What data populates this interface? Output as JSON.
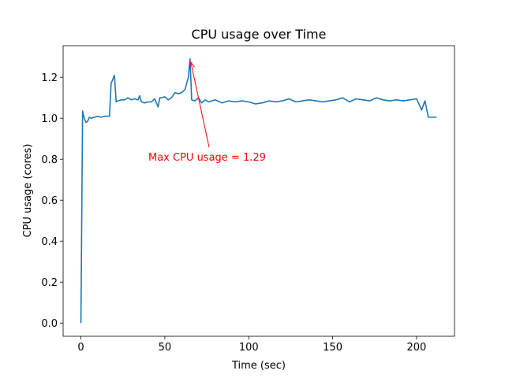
{
  "chart_data": {
    "type": "line",
    "title": "CPU usage over Time",
    "x_label": "Time (sec)",
    "y_label": "CPU usage (cores)",
    "x": [
      0,
      1,
      2,
      3,
      4,
      5,
      6,
      8,
      10,
      12,
      14,
      16,
      17,
      18,
      19,
      20,
      21,
      22,
      24,
      26,
      28,
      30,
      32,
      34,
      35,
      36,
      38,
      40,
      42,
      44,
      46,
      47,
      48,
      50,
      52,
      54,
      56,
      58,
      60,
      62,
      64,
      65,
      66,
      68,
      70,
      72,
      74,
      76,
      80,
      84,
      88,
      92,
      96,
      100,
      104,
      108,
      112,
      116,
      120,
      124,
      128,
      132,
      136,
      140,
      144,
      148,
      152,
      156,
      160,
      164,
      168,
      172,
      176,
      180,
      184,
      188,
      192,
      196,
      200,
      202,
      203,
      205,
      207,
      208,
      210,
      212
    ],
    "series": [
      {
        "name": "CPU usage",
        "color": "#1f77b4",
        "values": [
          0.0,
          1.035,
          1.0,
          0.98,
          0.985,
          1.005,
          1.0,
          1.005,
          1.01,
          1.005,
          1.01,
          1.01,
          1.01,
          1.17,
          1.19,
          1.21,
          1.08,
          1.085,
          1.09,
          1.09,
          1.1,
          1.09,
          1.095,
          1.09,
          1.11,
          1.08,
          1.075,
          1.08,
          1.08,
          1.095,
          1.055,
          1.1,
          1.1,
          1.105,
          1.09,
          1.1,
          1.125,
          1.12,
          1.125,
          1.14,
          1.2,
          1.29,
          1.09,
          1.085,
          1.1,
          1.075,
          1.09,
          1.08,
          1.09,
          1.075,
          1.085,
          1.08,
          1.085,
          1.08,
          1.07,
          1.075,
          1.085,
          1.08,
          1.085,
          1.095,
          1.08,
          1.085,
          1.09,
          1.085,
          1.08,
          1.085,
          1.09,
          1.1,
          1.08,
          1.095,
          1.09,
          1.085,
          1.1,
          1.09,
          1.085,
          1.09,
          1.085,
          1.09,
          1.095,
          1.06,
          1.04,
          1.085,
          1.005,
          1.005,
          1.005,
          1.005
        ]
      }
    ],
    "xlim": [
      -10.6,
      222.6
    ],
    "ylim": [
      -0.0645,
      1.3545
    ],
    "xticks": [
      0,
      50,
      100,
      150,
      200
    ],
    "yticks": [
      {
        "value": 0,
        "label": "0.0"
      },
      {
        "value": 0.2,
        "label": "0.2"
      },
      {
        "value": 0.4,
        "label": "0.4"
      },
      {
        "value": 0.6,
        "label": "0.6"
      },
      {
        "value": 0.8,
        "label": "0.8"
      },
      {
        "value": 1.0,
        "label": "1.0"
      },
      {
        "value": 1.2,
        "label": "1.2"
      }
    ],
    "annotation": {
      "text": "Max CPU usage = 1.29",
      "color": "#ff0000"
    }
  }
}
